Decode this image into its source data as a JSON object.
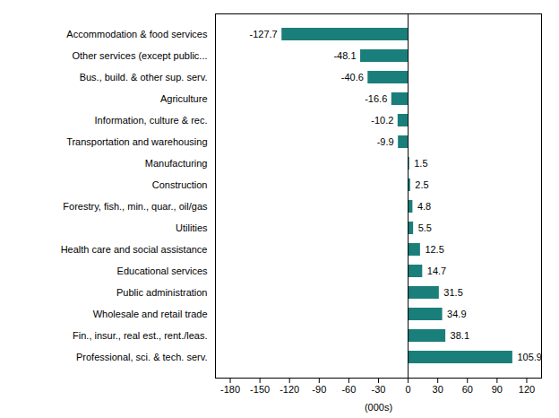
{
  "chart_data": {
    "type": "bar",
    "orientation": "horizontal",
    "categories": [
      "Accommodation & food services",
      "Other services (except public...",
      "Bus., build. & other sup. serv.",
      "Agriculture",
      "Information, culture & rec.",
      "Transportation and warehousing",
      "Manufacturing",
      "Construction",
      "Forestry, fish., min., quar., oil/gas",
      "Utilities",
      "Health care and social assistance",
      "Educational services",
      "Public administration",
      "Wholesale and retail trade",
      "Fin., insur., real est., rent./leas.",
      "Professional, sci. & tech. serv."
    ],
    "values": [
      -127.7,
      -48.1,
      -40.6,
      -16.6,
      -10.2,
      -9.9,
      1.5,
      2.5,
      4.8,
      5.5,
      12.5,
      14.7,
      31.5,
      34.9,
      38.1,
      105.9
    ],
    "color": "#1a7f7a",
    "xlabel": "(000s)",
    "xlim": [
      -195,
      135
    ],
    "xticks": [
      -180,
      -150,
      -120,
      -90,
      -60,
      -30,
      0,
      30,
      60,
      90,
      120
    ],
    "grid": false,
    "data_labels": true
  }
}
